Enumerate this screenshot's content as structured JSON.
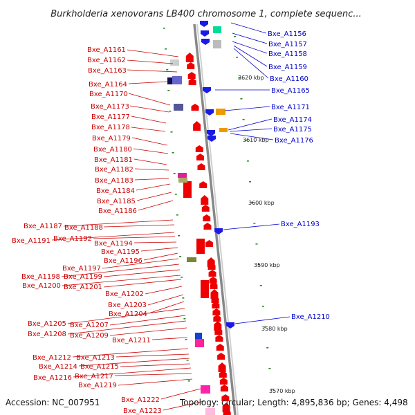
{
  "title": "Burkholderia xenovorans LB400 chromosome 1, complete sequenc...",
  "footer": {
    "accession": "Accession: NC_007951",
    "topology": "Topology: circular; Length: 4,895,836 bp; Genes: 4,498"
  },
  "colors": {
    "forward_gene": "#ee0000",
    "reverse_gene": "#1a1ae6",
    "label_left": "#cc0000",
    "label_right": "#0000cc",
    "backbone": "#999999",
    "tick": "#228822"
  },
  "scale_labels": [
    {
      "text": "3620 kbp"
    },
    {
      "text": "3610 kbp"
    },
    {
      "text": "3600 kbp"
    },
    {
      "text": "3590 kbp"
    },
    {
      "text": "3580 kbp"
    },
    {
      "text": "3570 kbp"
    }
  ],
  "left_labels": [
    "Bxe_A1161",
    "Bxe_A1162",
    "Bxe_A1163",
    "Bxe_A1164",
    "Bxe_A1170",
    "Bxe_A1173",
    "Bxe_A1177",
    "Bxe_A1178",
    "Bxe_A1179",
    "Bxe_A1180",
    "Bxe_A1181",
    "Bxe_A1182",
    "Bxe_A1183",
    "Bxe_A1184",
    "Bxe_A1185",
    "Bxe_A1186",
    "Bxe_A1187",
    "Bxe_A1188",
    "Bxe_A1191",
    "Bxe_A1192",
    "Bxe_A1194",
    "Bxe_A1195",
    "Bxe_A1196",
    "Bxe_A1197",
    "Bxe_A1198",
    "Bxe_A1199",
    "Bxe_A1200",
    "Bxe_A1201",
    "Bxe_A1202",
    "Bxe_A1203",
    "Bxe_A1204",
    "Bxe_A1205",
    "Bxe_A1207",
    "Bxe_A1208",
    "Bxe_A1209",
    "Bxe_A1211",
    "Bxe_A1212",
    "Bxe_A1213",
    "Bxe_A1214",
    "Bxe_A1215",
    "Bxe_A1216",
    "Bxe_A1217",
    "Bxe_A1219",
    "Bxe_A1222",
    "Bxe_A1223"
  ],
  "right_labels": [
    "Bxe_A1156",
    "Bxe_A1157",
    "Bxe_A1158",
    "Bxe_A1159",
    "Bxe_A1160",
    "Bxe_A1165",
    "Bxe_A1171",
    "Bxe_A1174",
    "Bxe_A1175",
    "Bxe_A1176",
    "Bxe_A1193",
    "Bxe_A1210"
  ]
}
